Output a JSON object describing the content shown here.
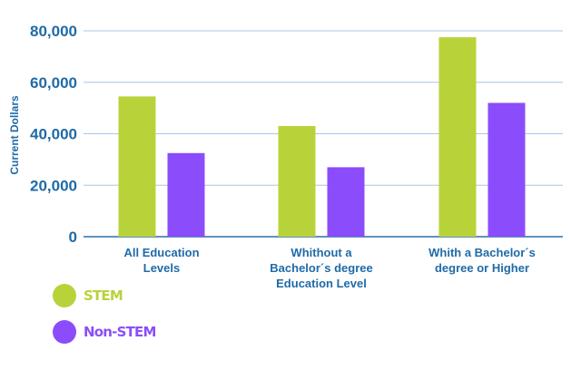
{
  "chart_data": {
    "type": "bar",
    "ylabel": "Current Dollars",
    "categories": [
      [
        "All Education",
        "Levels"
      ],
      [
        "Whithout a",
        "Bachelor´s degree",
        "Education Level"
      ],
      [
        "Whith a Bachelor´s",
        "degree or Higher"
      ]
    ],
    "series": [
      {
        "name": "STEM",
        "values": [
          54500,
          43000,
          77500
        ],
        "color": "#b8d33a"
      },
      {
        "name": "Non-STEM",
        "values": [
          32500,
          27000,
          52000
        ],
        "color": "#8b4dfb"
      }
    ],
    "ylim": [
      0,
      80000
    ],
    "yticks": [
      0,
      20000,
      40000,
      60000,
      80000
    ],
    "ytick_labels": [
      "0",
      "20,000",
      "40,000",
      "60,000",
      "80,000"
    ],
    "grid": true,
    "legend": "bottom-left",
    "colors": {
      "axis_text": "#1f6aa8",
      "grid": "#a9c6e6",
      "axis_line": "#2b6fa8"
    }
  },
  "legend": {
    "items": [
      {
        "label": "STEM",
        "color": "#b8d33a"
      },
      {
        "label": "Non-STEM",
        "color": "#8b4dfb"
      }
    ]
  }
}
